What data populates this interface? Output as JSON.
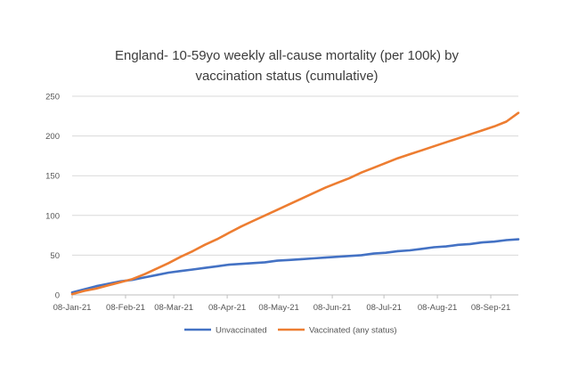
{
  "chart_data": {
    "type": "line",
    "title_lines": [
      "England- 10-59yo weekly all-cause mortality (per 100k) by",
      "vaccination status (cumulative)"
    ],
    "xlabel": "",
    "ylabel": "",
    "ylim": [
      0,
      250
    ],
    "yticks": [
      0,
      50,
      100,
      150,
      200,
      250
    ],
    "ytick_labels": [
      "0",
      "50",
      "100",
      "150",
      "200",
      "250"
    ],
    "xlim": [
      "2021-01-08",
      "2021-09-24"
    ],
    "xticks": [
      "2021-01-08",
      "2021-02-08",
      "2021-03-08",
      "2021-04-08",
      "2021-05-08",
      "2021-06-08",
      "2021-07-08",
      "2021-08-08",
      "2021-09-08"
    ],
    "xtick_labels": [
      "08-Jan-21",
      "08-Feb-21",
      "08-Mar-21",
      "08-Apr-21",
      "08-May-21",
      "08-Jun-21",
      "08-Jul-21",
      "08-Aug-21",
      "08-Sep-21"
    ],
    "grid": true,
    "legend_position": "bottom",
    "series": [
      {
        "name": "Unvaccinated",
        "color": "#4472C4",
        "points": [
          [
            "2021-01-08",
            3
          ],
          [
            "2021-01-15",
            7
          ],
          [
            "2021-01-22",
            11
          ],
          [
            "2021-01-29",
            14
          ],
          [
            "2021-02-05",
            17
          ],
          [
            "2021-02-12",
            19
          ],
          [
            "2021-02-19",
            22
          ],
          [
            "2021-02-26",
            25
          ],
          [
            "2021-03-05",
            28
          ],
          [
            "2021-03-12",
            30
          ],
          [
            "2021-03-19",
            32
          ],
          [
            "2021-03-26",
            34
          ],
          [
            "2021-04-02",
            36
          ],
          [
            "2021-04-09",
            38
          ],
          [
            "2021-04-16",
            39
          ],
          [
            "2021-04-23",
            40
          ],
          [
            "2021-04-30",
            41
          ],
          [
            "2021-05-07",
            43
          ],
          [
            "2021-05-14",
            44
          ],
          [
            "2021-05-21",
            45
          ],
          [
            "2021-05-28",
            46
          ],
          [
            "2021-06-04",
            47
          ],
          [
            "2021-06-11",
            48
          ],
          [
            "2021-06-18",
            49
          ],
          [
            "2021-06-25",
            50
          ],
          [
            "2021-07-02",
            52
          ],
          [
            "2021-07-09",
            53
          ],
          [
            "2021-07-16",
            55
          ],
          [
            "2021-07-23",
            56
          ],
          [
            "2021-07-30",
            58
          ],
          [
            "2021-08-06",
            60
          ],
          [
            "2021-08-13",
            61
          ],
          [
            "2021-08-20",
            63
          ],
          [
            "2021-08-27",
            64
          ],
          [
            "2021-09-03",
            66
          ],
          [
            "2021-09-10",
            67
          ],
          [
            "2021-09-17",
            69
          ],
          [
            "2021-09-24",
            70
          ]
        ]
      },
      {
        "name": "Vaccinated (any status)",
        "color": "#ED7D31",
        "points": [
          [
            "2021-01-08",
            1
          ],
          [
            "2021-01-15",
            5
          ],
          [
            "2021-01-22",
            8
          ],
          [
            "2021-01-29",
            12
          ],
          [
            "2021-02-05",
            16
          ],
          [
            "2021-02-12",
            20
          ],
          [
            "2021-02-19",
            26
          ],
          [
            "2021-02-26",
            33
          ],
          [
            "2021-03-05",
            40
          ],
          [
            "2021-03-12",
            48
          ],
          [
            "2021-03-19",
            55
          ],
          [
            "2021-03-26",
            63
          ],
          [
            "2021-04-02",
            70
          ],
          [
            "2021-04-09",
            78
          ],
          [
            "2021-04-16",
            86
          ],
          [
            "2021-04-23",
            93
          ],
          [
            "2021-04-30",
            100
          ],
          [
            "2021-05-07",
            107
          ],
          [
            "2021-05-14",
            114
          ],
          [
            "2021-05-21",
            121
          ],
          [
            "2021-05-28",
            128
          ],
          [
            "2021-06-04",
            135
          ],
          [
            "2021-06-11",
            141
          ],
          [
            "2021-06-18",
            147
          ],
          [
            "2021-06-25",
            154
          ],
          [
            "2021-07-02",
            160
          ],
          [
            "2021-07-09",
            166
          ],
          [
            "2021-07-16",
            172
          ],
          [
            "2021-07-23",
            177
          ],
          [
            "2021-07-30",
            182
          ],
          [
            "2021-08-06",
            187
          ],
          [
            "2021-08-13",
            192
          ],
          [
            "2021-08-20",
            197
          ],
          [
            "2021-08-27",
            202
          ],
          [
            "2021-09-03",
            207
          ],
          [
            "2021-09-10",
            212
          ],
          [
            "2021-09-17",
            218
          ],
          [
            "2021-09-24",
            229
          ]
        ]
      }
    ]
  }
}
